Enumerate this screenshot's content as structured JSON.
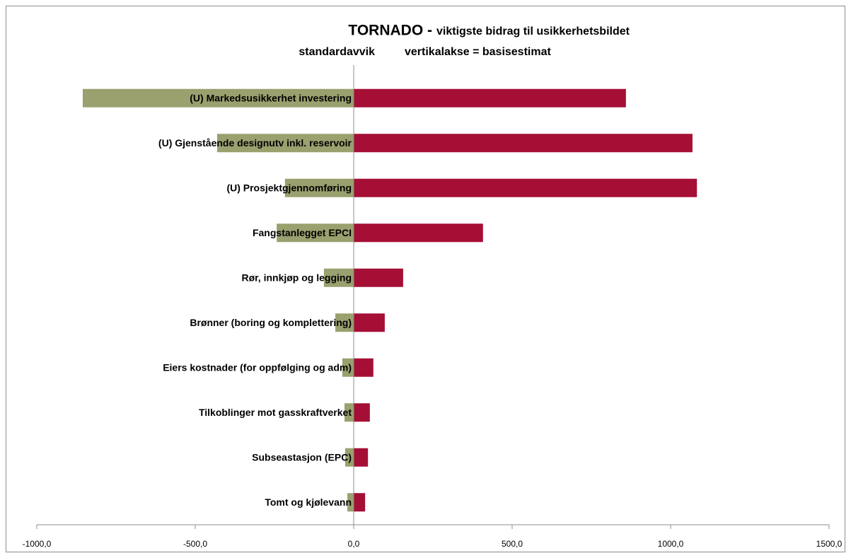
{
  "chart_data": {
    "type": "tornado",
    "title": "TORNADO -",
    "subtitle": "viktigste bidrag til usikkerhetsbildet",
    "subtitle2": "standardavvik",
    "subtitle3": "vertikalakse = basisestimat",
    "categories": [
      "(U) Markedsusikkerhet investering",
      "(U) Gjenstående designutv inkl. reservoir",
      "(U) Prosjektgjennomføring",
      "Fangstanlegget EPCI",
      "Rør, innkjøp og legging",
      "Brønner (boring og komplettering)",
      "Eiers kostnader (for oppfølging og adm)",
      "Tilkoblinger mot gasskraftverket",
      "Subseastasjon (EPC)",
      "Tomt og kjølevann"
    ],
    "series": [
      {
        "color": "#9aa06e",
        "values": [
          -855,
          -431,
          -217,
          -243,
          -94,
          -58,
          -36,
          -29,
          -27,
          -20
        ]
      },
      {
        "color": "#a50f35",
        "values": [
          859,
          1069,
          1083,
          408,
          156,
          98,
          62,
          51,
          45,
          36
        ]
      }
    ],
    "xlim": [
      -1000,
      1500
    ],
    "xticks": [
      {
        "value": -1000,
        "label": "-1000,0"
      },
      {
        "value": -500,
        "label": "-500,0"
      },
      {
        "value": 0,
        "label": "0,0"
      },
      {
        "value": 500,
        "label": "500,0"
      },
      {
        "value": 1000,
        "label": "1000,0"
      },
      {
        "value": 1500,
        "label": "1500,0"
      }
    ]
  }
}
